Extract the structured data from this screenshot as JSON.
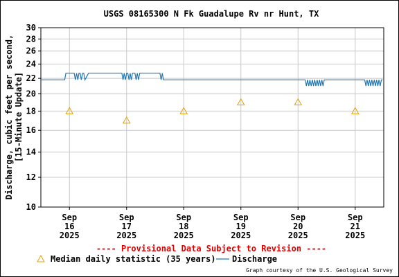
{
  "chart_data": {
    "type": "line",
    "title": "USGS 08165300 N Fk Guadalupe Rv nr Hunt, TX",
    "ylabel": [
      "Discharge, cubic feet per second,",
      "[15-Minute Update]"
    ],
    "y_scale": "log",
    "ylim": [
      10,
      30
    ],
    "y_ticks": [
      10,
      12,
      14,
      16,
      18,
      20,
      22,
      24,
      26,
      28,
      30
    ],
    "xlim": [
      "2025-09-15T12:00",
      "2025-09-21T12:00"
    ],
    "x_ticks": [
      {
        "date": "2025-09-16",
        "line1": "Sep",
        "line2": "16",
        "line3": "2025"
      },
      {
        "date": "2025-09-17",
        "line1": "Sep",
        "line2": "17",
        "line3": "2025"
      },
      {
        "date": "2025-09-18",
        "line1": "Sep",
        "line2": "18",
        "line3": "2025"
      },
      {
        "date": "2025-09-19",
        "line1": "Sep",
        "line2": "19",
        "line3": "2025"
      },
      {
        "date": "2025-09-20",
        "line1": "Sep",
        "line2": "20",
        "line3": "2025"
      },
      {
        "date": "2025-09-21",
        "line1": "Sep",
        "line2": "21",
        "line3": "2025"
      }
    ],
    "grid": true,
    "series": [
      {
        "name": "Discharge",
        "color": "#1f77b4",
        "style": "line",
        "x": [
          "2025-09-15T12:00",
          "2025-09-15T22:00",
          "2025-09-15T22:30",
          "2025-09-16T02:00",
          "2025-09-16T02:30",
          "2025-09-16T03:00",
          "2025-09-16T03:30",
          "2025-09-16T04:00",
          "2025-09-16T04:30",
          "2025-09-16T05:00",
          "2025-09-16T05:30",
          "2025-09-16T06:00",
          "2025-09-16T06:30",
          "2025-09-16T08:00",
          "2025-09-16T22:00",
          "2025-09-16T22:30",
          "2025-09-16T23:00",
          "2025-09-16T23:30",
          "2025-09-17T00:00",
          "2025-09-17T00:30",
          "2025-09-17T01:00",
          "2025-09-17T01:30",
          "2025-09-17T02:00",
          "2025-09-17T02:30",
          "2025-09-17T03:00",
          "2025-09-17T03:30",
          "2025-09-17T04:00",
          "2025-09-17T04:30",
          "2025-09-17T05:00",
          "2025-09-17T05:30",
          "2025-09-17T06:00",
          "2025-09-17T14:00",
          "2025-09-17T14:30",
          "2025-09-17T15:00",
          "2025-09-17T15:30",
          "2025-09-17T16:00",
          "2025-09-20T03:00",
          "2025-09-20T03:30",
          "2025-09-20T04:00",
          "2025-09-20T04:30",
          "2025-09-20T05:00",
          "2025-09-20T05:30",
          "2025-09-20T06:00",
          "2025-09-20T06:30",
          "2025-09-20T07:00",
          "2025-09-20T07:30",
          "2025-09-20T08:00",
          "2025-09-20T08:30",
          "2025-09-20T09:00",
          "2025-09-20T09:30",
          "2025-09-20T10:00",
          "2025-09-20T10:30",
          "2025-09-20T11:00",
          "2025-09-21T04:00",
          "2025-09-21T04:30",
          "2025-09-21T05:00",
          "2025-09-21T05:30",
          "2025-09-21T06:00",
          "2025-09-21T06:30",
          "2025-09-21T07:00",
          "2025-09-21T07:30",
          "2025-09-21T08:00",
          "2025-09-21T08:30",
          "2025-09-21T09:00",
          "2025-09-21T09:30",
          "2025-09-21T10:00",
          "2025-09-21T10:30",
          "2025-09-21T11:00",
          "2025-09-21T11:30"
        ],
        "y": [
          21.8,
          21.8,
          22.7,
          22.7,
          21.8,
          22.7,
          21.8,
          22.7,
          22.7,
          21.8,
          22.7,
          22.7,
          21.8,
          22.7,
          22.7,
          21.8,
          22.7,
          21.8,
          22.7,
          22.7,
          21.8,
          22.7,
          21.8,
          22.7,
          22.7,
          22.7,
          21.8,
          22.7,
          21.8,
          22.7,
          22.7,
          22.7,
          21.8,
          22.7,
          21.8,
          21.8,
          21.8,
          21.0,
          21.8,
          21.0,
          21.8,
          21.0,
          21.8,
          21.0,
          21.8,
          21.0,
          21.8,
          21.0,
          21.8,
          21.0,
          21.8,
          21.0,
          21.8,
          21.8,
          21.0,
          21.8,
          21.0,
          21.8,
          21.0,
          21.8,
          21.0,
          21.8,
          21.0,
          21.8,
          21.0,
          21.8,
          21.0,
          21.8,
          21.8
        ]
      },
      {
        "name": "Median daily statistic (35 years)",
        "color": "#e8a000",
        "style": "triangle",
        "x": [
          "2025-09-16",
          "2025-09-17",
          "2025-09-18",
          "2025-09-19",
          "2025-09-20",
          "2025-09-21"
        ],
        "y": [
          18,
          17,
          18,
          19,
          19,
          18
        ]
      }
    ],
    "provisional_note": "---- Provisional Data Subject to Revision ----",
    "legend_placement": "bottom",
    "credit": "Graph courtesy of the U.S. Geological Survey"
  }
}
